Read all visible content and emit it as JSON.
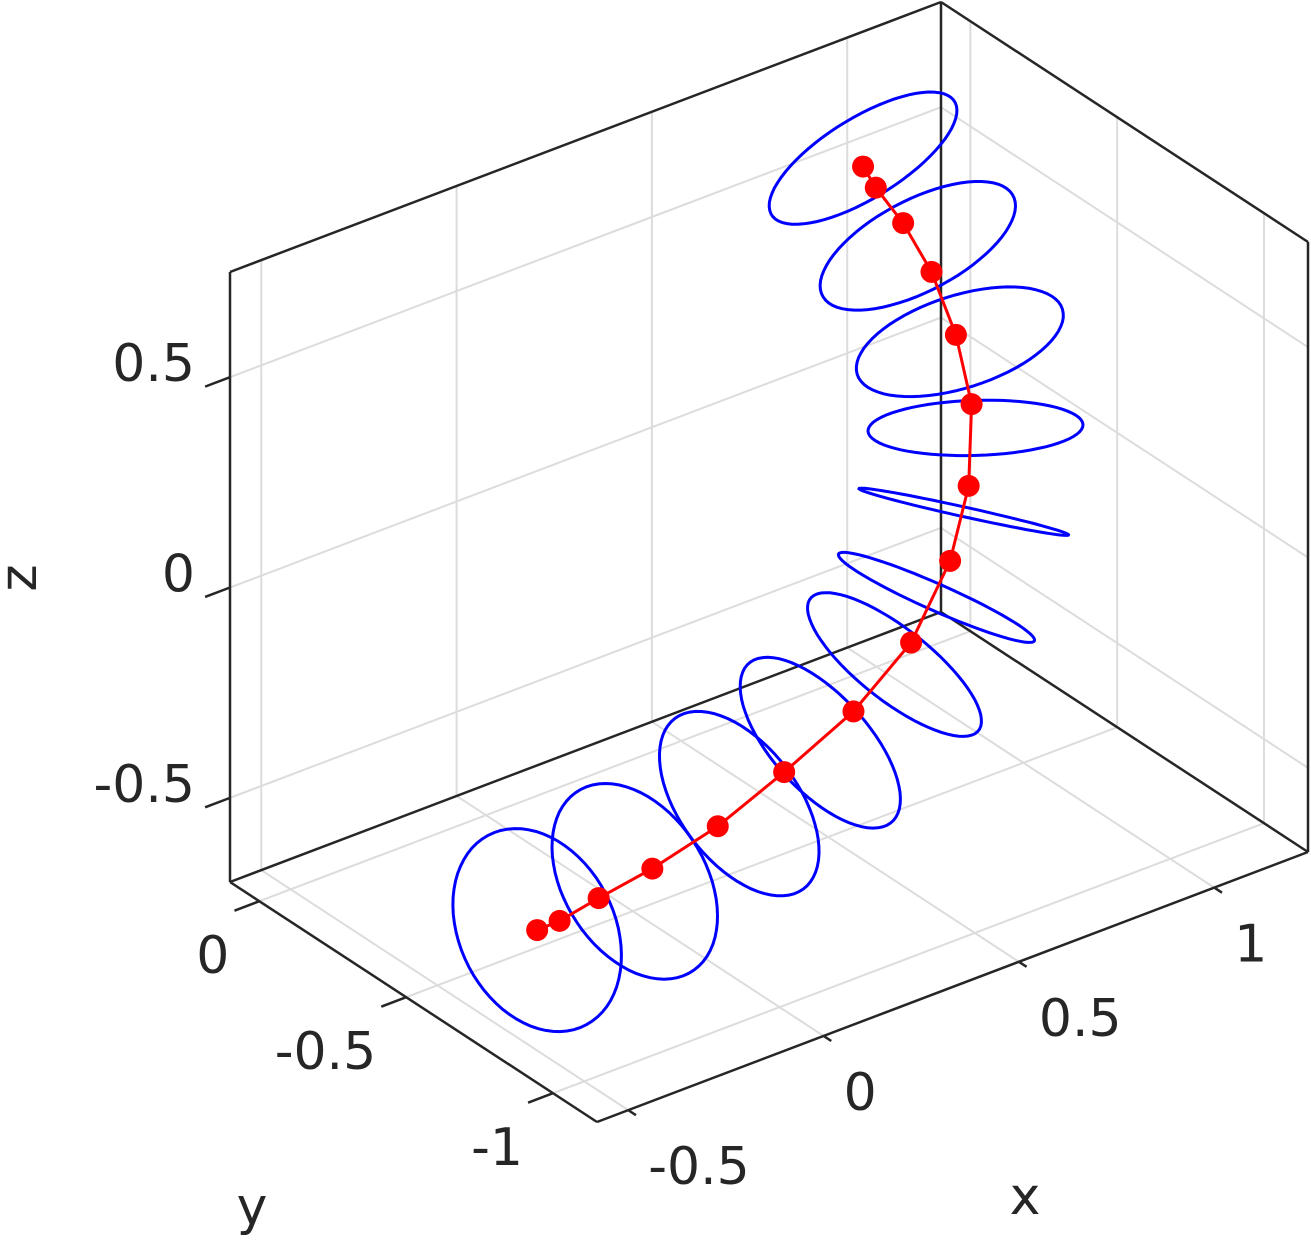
{
  "chart_data": {
    "type": "line3d",
    "xlabel": "x",
    "ylabel": "y",
    "zlabel": "z",
    "xlim": [
      -0.58,
      1.24
    ],
    "ylim": [
      -1.15,
      0.1
    ],
    "zlim": [
      -0.7,
      0.75
    ],
    "xticks": [
      -0.5,
      0,
      0.5,
      1
    ],
    "yticks": [
      -1,
      -0.5,
      0
    ],
    "zticks": [
      -0.5,
      0,
      0.5
    ],
    "grid": true,
    "series": [
      {
        "style": "line-dots",
        "color": "#ff0000",
        "x": [
          -0.41,
          -0.33,
          -0.2,
          -0.04,
          0.15,
          0.35,
          0.55,
          0.72,
          0.85,
          0.92,
          0.95,
          0.94,
          0.9,
          0.85,
          0.81,
          0.8
        ],
        "y": [
          -0.72,
          -0.69,
          -0.65,
          -0.62,
          -0.59,
          -0.55,
          -0.52,
          -0.49,
          -0.45,
          -0.42,
          -0.39,
          -0.35,
          -0.32,
          -0.29,
          -0.25,
          -0.22
        ],
        "z": [
          -0.5,
          -0.52,
          -0.53,
          -0.53,
          -0.51,
          -0.47,
          -0.41,
          -0.32,
          -0.19,
          -0.05,
          0.12,
          0.27,
          0.42,
          0.54,
          0.62,
          0.66
        ]
      },
      {
        "style": "rings",
        "color": "#0000ff",
        "radius": 0.22,
        "x": [
          -0.41,
          -0.1,
          0.22,
          0.45,
          0.67,
          0.8,
          0.9,
          0.96,
          0.95,
          0.88,
          0.8
        ],
        "y": [
          -0.72,
          -0.64,
          -0.57,
          -0.54,
          -0.5,
          -0.47,
          -0.43,
          -0.39,
          -0.35,
          -0.3,
          -0.22
        ],
        "z": [
          -0.5,
          -0.53,
          -0.49,
          -0.44,
          -0.35,
          -0.25,
          -0.1,
          0.06,
          0.25,
          0.48,
          0.68
        ]
      }
    ]
  }
}
